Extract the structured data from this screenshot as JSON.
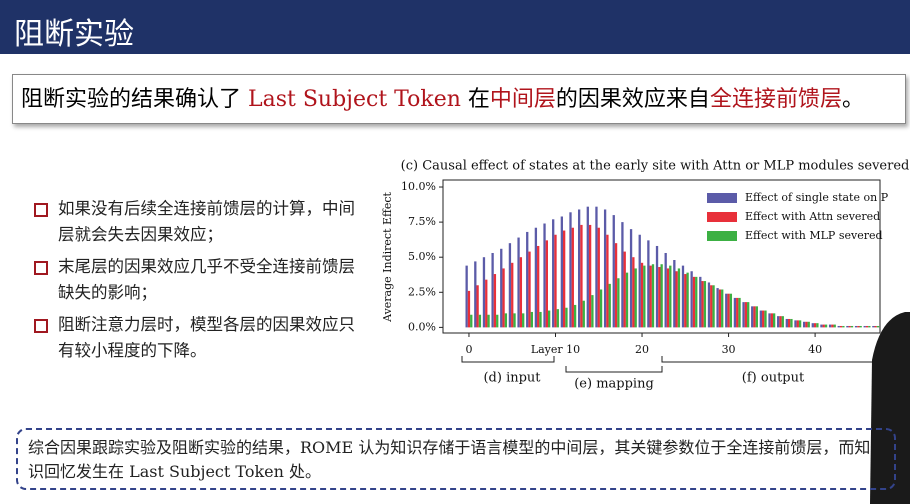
{
  "header": {
    "title": "阻断实验"
  },
  "statement": [
    {
      "text": "阻断实验的结果确认了 ",
      "emphasis": false
    },
    {
      "text": "Last Subject Token",
      "emphasis": true
    },
    {
      "text": " 在",
      "emphasis": false
    },
    {
      "text": "中间层",
      "emphasis": true
    },
    {
      "text": "的因果效应来自",
      "emphasis": false
    },
    {
      "text": "全连接前馈层",
      "emphasis": true
    },
    {
      "text": "。",
      "emphasis": false
    }
  ],
  "bullets": [
    "如果没有后续全连接前馈层的计算，中间层就会失去因果效应；",
    "末尾层的因果效应几乎不受全连接前馈层缺失的影响；",
    "阻断注意力层时，模型各层的因果效应只有较小程度的下降。"
  ],
  "conclusion": "综合因果跟踪实验及阻断实验的结果，ROME 认为知识存储于语言模型的中间层，其关键参数位于全连接前馈层，而知识回忆发生在 Last Subject Token 处。",
  "chart_data": {
    "type": "bar",
    "title": "(c) Causal effect of states at the early site with Attn or MLP modules severed",
    "y_label": "Average Indirect Effect",
    "x": [
      0,
      1,
      2,
      3,
      4,
      5,
      6,
      7,
      8,
      9,
      10,
      11,
      12,
      13,
      14,
      15,
      16,
      17,
      18,
      19,
      20,
      21,
      22,
      23,
      24,
      25,
      26,
      27,
      28,
      29,
      30,
      31,
      32,
      33,
      34,
      35,
      36,
      37,
      38,
      39,
      40,
      41,
      42,
      43,
      44,
      45,
      46,
      47
    ],
    "xlim": [
      -3,
      47.5
    ],
    "xticks": [
      0,
      {
        "value": 10,
        "label": "Layer 10"
      },
      20,
      30,
      40
    ],
    "ylim": [
      -0.4,
      10.5
    ],
    "yticks": [
      {
        "value": 0,
        "label": "0.0%"
      },
      {
        "value": 2.5,
        "label": "2.5%"
      },
      {
        "value": 5,
        "label": "5.0%"
      },
      {
        "value": 7.5,
        "label": "7.5%"
      },
      {
        "value": 10,
        "label": "10.0%"
      }
    ],
    "legend": "upper right",
    "ranges": [
      "(d) input",
      "(e) mapping",
      "(f) output"
    ],
    "series": [
      {
        "name": "Effect of single state on P",
        "color": "#5b5ba8",
        "values": [
          4.4,
          4.7,
          5.0,
          5.3,
          5.6,
          6.0,
          6.4,
          6.8,
          7.1,
          7.4,
          7.7,
          7.9,
          8.2,
          8.4,
          8.6,
          8.6,
          8.4,
          8.0,
          7.5,
          7.0,
          6.6,
          6.2,
          5.8,
          5.3,
          4.8,
          4.4,
          4.0,
          3.6,
          3.2,
          2.8,
          2.4,
          2.1,
          1.8,
          1.5,
          1.2,
          1.0,
          0.8,
          0.6,
          0.5,
          0.4,
          0.3,
          0.2,
          0.2,
          0.1,
          0.1,
          0.1,
          0.1,
          0.1
        ]
      },
      {
        "name": "Effect with Attn severed",
        "color": "#e8303a",
        "values": [
          2.6,
          3.0,
          3.4,
          3.8,
          4.2,
          4.6,
          5.0,
          5.4,
          5.8,
          6.2,
          6.6,
          6.9,
          7.1,
          7.3,
          7.3,
          7.1,
          6.6,
          6.0,
          5.4,
          5.0,
          4.6,
          4.4,
          4.3,
          4.2,
          4.0,
          3.8,
          3.6,
          3.3,
          3.0,
          2.7,
          2.4,
          2.1,
          1.8,
          1.5,
          1.2,
          1.0,
          0.8,
          0.6,
          0.5,
          0.4,
          0.3,
          0.2,
          0.2,
          0.1,
          0.1,
          0.1,
          0.1,
          0.1
        ]
      },
      {
        "name": "Effect with MLP severed",
        "color": "#3cb043",
        "values": [
          0.9,
          0.9,
          0.9,
          0.9,
          1.0,
          1.0,
          1.0,
          1.1,
          1.1,
          1.2,
          1.3,
          1.4,
          1.6,
          1.9,
          2.3,
          2.7,
          3.1,
          3.5,
          3.9,
          4.2,
          4.4,
          4.5,
          4.5,
          4.4,
          4.2,
          3.9,
          3.6,
          3.3,
          3.0,
          2.7,
          2.4,
          2.1,
          1.8,
          1.5,
          1.2,
          1.0,
          0.8,
          0.6,
          0.5,
          0.4,
          0.3,
          0.2,
          0.2,
          0.1,
          0.1,
          0.1,
          0.1,
          0.1
        ]
      }
    ]
  }
}
